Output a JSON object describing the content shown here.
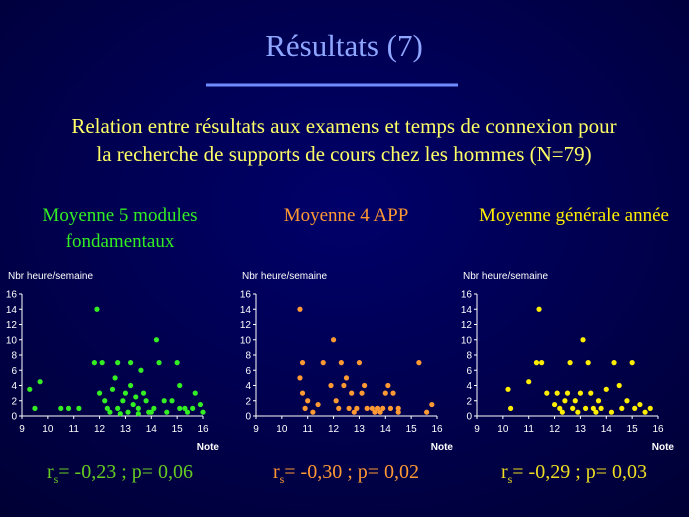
{
  "title": "Résultats (7)",
  "subtitle": [
    "Relation entre résultats aux examens et temps de connexion pour",
    "la recherche de supports de cours chez les hommes (N=79)"
  ],
  "chart_data": [
    {
      "type": "scatter",
      "title": [
        "Moyenne 5 modules",
        "fondamentaux"
      ],
      "ylabel": "Nbr heure/semaine",
      "xlabel": "Note",
      "color": "#33ee22",
      "x": [
        9.3,
        9.5,
        9.7,
        10.5,
        10.8,
        11.2,
        11.9,
        11.8,
        12.1,
        12,
        12.2,
        12.3,
        12.4,
        12.5,
        12.6,
        12.7,
        12.7,
        12.9,
        13,
        13.1,
        13.2,
        13.2,
        13.3,
        13.4,
        13.5,
        13.6,
        13.7,
        13.8,
        13.9,
        14,
        14.1,
        14.2,
        14.3,
        14.5,
        14.6,
        14.8,
        15,
        15.1,
        15.3,
        15.4,
        15.6,
        15.7,
        15.9,
        16,
        15.1,
        12.8,
        13.5
      ],
      "values": [
        3.5,
        1,
        4.5,
        1,
        1,
        1,
        14,
        7,
        7,
        3,
        2,
        1,
        0.5,
        3.5,
        5,
        7,
        1,
        2,
        3,
        0.5,
        4,
        7,
        1.5,
        2.5,
        1,
        6,
        3,
        2,
        0.5,
        0.5,
        1,
        10,
        7,
        2,
        0.5,
        2,
        7,
        4,
        1,
        0.5,
        1,
        3,
        1.5,
        0.5,
        1,
        0.3,
        0.3
      ],
      "xlim": [
        9,
        16
      ],
      "ylim": [
        0,
        16
      ],
      "xticks": [
        9,
        10,
        11,
        12,
        13,
        14,
        15,
        16
      ],
      "yticks": [
        0,
        2,
        4,
        6,
        8,
        10,
        12,
        14,
        16
      ],
      "annotation_r": "r",
      "annotation_sub": "s",
      "annotation": "= -0,23 ; p= 0,06",
      "annotation_color": "#66cc22"
    },
    {
      "type": "scatter",
      "title": [
        "Moyenne 4 APP"
      ],
      "ylabel": "Nbr heure/semaine",
      "xlabel": "Note",
      "color": "#ff9933",
      "x": [
        10.7,
        10.8,
        10.7,
        10.8,
        10.9,
        11,
        11.2,
        11.4,
        11.6,
        11.9,
        12,
        12.1,
        12.2,
        12.3,
        12.4,
        12.5,
        12.6,
        12.7,
        12.8,
        12.9,
        13,
        13.1,
        13.2,
        13.3,
        13.5,
        13.6,
        13.7,
        13.8,
        13.9,
        14,
        14.1,
        14.2,
        14.3,
        14.5,
        14.5,
        15.3,
        15.6,
        15.8
      ],
      "values": [
        14,
        7,
        5,
        3,
        1,
        2,
        0.5,
        1.5,
        7,
        4,
        10,
        2,
        1,
        7,
        4,
        5,
        1,
        3,
        0.5,
        1,
        7,
        3,
        4,
        1,
        1,
        0.5,
        1,
        0.5,
        1,
        3,
        4,
        1,
        3,
        0.5,
        1,
        7,
        0.5,
        1.5
      ],
      "xlim": [
        9,
        16
      ],
      "ylim": [
        0,
        16
      ],
      "xticks": [
        9,
        10,
        11,
        12,
        13,
        14,
        15,
        16
      ],
      "yticks": [
        0,
        2,
        4,
        6,
        8,
        10,
        12,
        14,
        16
      ],
      "annotation_r": "r",
      "annotation_sub": "s",
      "annotation": "= -0,30 ; p= 0,02",
      "annotation_color": "#ff9933"
    },
    {
      "type": "scatter",
      "title": [
        "Moyenne générale année"
      ],
      "ylabel": "Nbr heure/semaine",
      "xlabel": "Note",
      "color": "#ffee00",
      "x": [
        10.2,
        10.3,
        11,
        11.3,
        11.4,
        11.5,
        11.7,
        12,
        12.1,
        12.2,
        12.3,
        12.4,
        12.5,
        12.6,
        12.7,
        12.8,
        12.9,
        13,
        13.1,
        13.2,
        13.3,
        13.4,
        13.5,
        13.6,
        13.7,
        13.8,
        14,
        14.2,
        14.3,
        14.5,
        14.6,
        14.8,
        15,
        15.1,
        15.3,
        15.5,
        15.7
      ],
      "values": [
        3.5,
        1,
        4.5,
        7,
        14,
        7,
        3,
        1.5,
        3,
        1,
        0.5,
        2,
        3,
        7,
        1,
        2,
        0.5,
        3,
        10,
        1,
        7,
        3,
        1,
        0.5,
        2,
        1,
        3.5,
        0.5,
        7,
        4,
        1,
        2,
        7,
        1,
        1.5,
        0.5,
        1
      ],
      "xlim": [
        9,
        16
      ],
      "ylim": [
        0,
        16
      ],
      "xticks": [
        9,
        10,
        11,
        12,
        13,
        14,
        15,
        16
      ],
      "yticks": [
        0,
        2,
        4,
        6,
        8,
        10,
        12,
        14,
        16
      ],
      "annotation_r": "r",
      "annotation_sub": "s",
      "annotation": "= -0,29 ; p= 0,03",
      "annotation_color": "#eedd22"
    }
  ]
}
